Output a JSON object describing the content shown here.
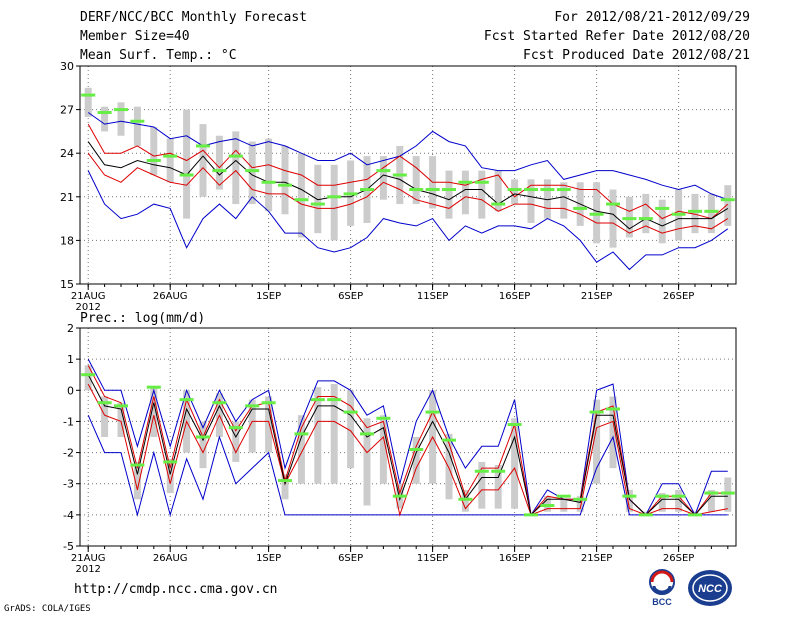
{
  "header": {
    "title": "DERF/NCC/BCC Monthly Forecast",
    "member": "Member Size=40",
    "variable": "Mean Surf. Temp.: °C",
    "period": "For 2012/08/21-2012/09/29",
    "started": "Fcst Started Refer Date 2012/08/20",
    "produced": "Fcst Produced Date 2012/08/21"
  },
  "footer": {
    "url": "http://cmdp.ncc.cma.gov.cn",
    "grads": "GrADS: COLA/IGES",
    "logo1": "BCC",
    "logo2": "NCC"
  },
  "colors": {
    "max": "#0000cc",
    "min": "#0000cc",
    "upper": "#dd0000",
    "lower": "#dd0000",
    "mean": "#000000",
    "bar": "#cccccc",
    "mark": "#66ee44",
    "grid": "#777777"
  },
  "chart_data": [
    {
      "type": "line",
      "title": "",
      "ylabel": "Mean Surf. Temp.: °C",
      "ylim": [
        15,
        30
      ],
      "yticks": [
        15,
        18,
        21,
        24,
        27,
        30
      ],
      "xticks": [
        {
          "day": 1,
          "label": "21AUG",
          "sub": "2012"
        },
        {
          "day": 6,
          "label": "26AUG"
        },
        {
          "day": 12,
          "label": "1SEP"
        },
        {
          "day": 17,
          "label": "6SEP"
        },
        {
          "day": 22,
          "label": "11SEP"
        },
        {
          "day": 27,
          "label": "16SEP"
        },
        {
          "day": 32,
          "label": "21SEP"
        },
        {
          "day": 37,
          "label": "26SEP"
        }
      ],
      "days": 40,
      "series": [
        {
          "name": "max",
          "values": [
            26.8,
            26.0,
            26.2,
            26.0,
            25.8,
            25.0,
            25.2,
            24.5,
            24.8,
            25.0,
            24.5,
            24.8,
            24.5,
            24.0,
            23.5,
            23.5,
            24.0,
            23.2,
            23.5,
            23.8,
            24.5,
            25.5,
            24.8,
            24.5,
            23.0,
            22.8,
            22.8,
            23.2,
            23.5,
            22.2,
            22.5,
            22.8,
            22.8,
            22.5,
            22.2,
            21.8,
            21.5,
            21.8,
            21.2,
            20.8
          ]
        },
        {
          "name": "upper",
          "values": [
            26.0,
            24.0,
            24.0,
            24.5,
            23.8,
            24.0,
            23.5,
            24.2,
            23.0,
            24.2,
            23.0,
            23.2,
            22.8,
            22.5,
            21.8,
            21.8,
            22.0,
            22.2,
            23.0,
            23.8,
            23.0,
            22.0,
            22.0,
            21.8,
            22.2,
            22.5,
            21.0,
            21.8,
            21.8,
            21.8,
            21.5,
            21.5,
            20.5,
            20.0,
            20.5,
            19.5,
            20.0,
            19.8,
            19.5,
            20.5
          ]
        },
        {
          "name": "mean",
          "values": [
            24.8,
            23.2,
            23.0,
            23.5,
            23.2,
            23.0,
            22.5,
            23.8,
            22.5,
            23.5,
            22.5,
            22.0,
            22.0,
            21.5,
            20.8,
            21.0,
            21.0,
            21.5,
            22.5,
            22.2,
            21.5,
            21.2,
            20.8,
            21.5,
            21.5,
            20.5,
            21.2,
            21.0,
            20.8,
            21.0,
            20.5,
            20.0,
            19.8,
            18.8,
            19.5,
            19.0,
            19.5,
            19.5,
            19.5,
            20.2
          ]
        },
        {
          "name": "lower",
          "values": [
            24.0,
            22.5,
            22.0,
            23.0,
            22.5,
            22.0,
            21.8,
            23.0,
            21.8,
            22.8,
            21.5,
            21.2,
            21.2,
            20.5,
            20.2,
            20.2,
            20.5,
            21.0,
            22.0,
            21.5,
            20.8,
            20.5,
            20.2,
            21.0,
            20.8,
            20.0,
            20.5,
            20.5,
            20.2,
            20.2,
            19.8,
            19.2,
            19.2,
            18.5,
            19.0,
            18.5,
            18.8,
            19.0,
            18.8,
            19.5
          ]
        },
        {
          "name": "min",
          "values": [
            22.8,
            20.5,
            19.5,
            19.8,
            20.5,
            20.2,
            17.5,
            19.5,
            20.5,
            19.5,
            21.0,
            20.0,
            18.5,
            18.5,
            17.5,
            17.2,
            17.5,
            18.2,
            19.5,
            19.2,
            19.0,
            19.5,
            18.0,
            19.0,
            18.5,
            19.0,
            19.0,
            18.8,
            19.5,
            19.0,
            18.0,
            16.5,
            17.2,
            16.0,
            17.0,
            17.0,
            17.5,
            17.5,
            18.0,
            18.8
          ]
        },
        {
          "name": "bar_top",
          "values": [
            28.5,
            27.2,
            27.5,
            27.2,
            25.8,
            25.0,
            27.0,
            26.0,
            25.2,
            25.5,
            24.8,
            25.0,
            24.5,
            24.0,
            23.2,
            23.2,
            23.5,
            23.8,
            23.8,
            24.5,
            23.8,
            23.8,
            22.8,
            22.8,
            22.8,
            22.8,
            22.2,
            22.2,
            22.2,
            22.0,
            22.0,
            22.0,
            21.5,
            21.0,
            21.2,
            20.8,
            21.5,
            21.2,
            21.2,
            21.8
          ]
        },
        {
          "name": "bar_bottom",
          "values": [
            26.5,
            25.5,
            25.2,
            24.5,
            22.5,
            22.0,
            19.5,
            21.0,
            21.5,
            20.5,
            20.5,
            20.0,
            19.8,
            18.2,
            18.5,
            18.0,
            19.0,
            19.2,
            20.8,
            20.5,
            20.5,
            20.2,
            19.5,
            19.8,
            19.5,
            20.0,
            20.5,
            19.2,
            19.5,
            19.5,
            19.0,
            17.8,
            17.5,
            18.2,
            18.5,
            17.8,
            18.0,
            18.5,
            18.5,
            19.0
          ]
        },
        {
          "name": "marker",
          "values": [
            28.0,
            26.8,
            27.0,
            26.2,
            23.5,
            23.8,
            22.5,
            24.5,
            22.8,
            23.8,
            22.8,
            22.0,
            21.8,
            20.8,
            20.5,
            21.0,
            21.2,
            21.5,
            22.8,
            22.5,
            21.5,
            21.5,
            21.5,
            22.0,
            22.0,
            20.5,
            21.5,
            21.5,
            21.5,
            21.5,
            20.2,
            19.8,
            20.5,
            19.5,
            19.5,
            20.2,
            19.8,
            20.0,
            20.0,
            20.8
          ]
        }
      ]
    },
    {
      "type": "line",
      "title": "",
      "ylabel": "Prec.: log(mm/d)",
      "ylim": [
        -5,
        2
      ],
      "yticks": [
        -5,
        -4,
        -3,
        -2,
        -1,
        0,
        1,
        2
      ],
      "xticks": [
        {
          "day": 1,
          "label": "21AUG",
          "sub": "2012"
        },
        {
          "day": 6,
          "label": "26AUG"
        },
        {
          "day": 12,
          "label": "1SEP"
        },
        {
          "day": 17,
          "label": "6SEP"
        },
        {
          "day": 22,
          "label": "11SEP"
        },
        {
          "day": 27,
          "label": "16SEP"
        },
        {
          "day": 32,
          "label": "21SEP"
        },
        {
          "day": 37,
          "label": "26SEP"
        }
      ],
      "days": 40,
      "series": [
        {
          "name": "max",
          "values": [
            1.0,
            0.0,
            0.0,
            -1.8,
            0.0,
            -1.8,
            0.0,
            -1.2,
            0.0,
            -1.0,
            -0.3,
            0.0,
            -2.5,
            -1.0,
            0.3,
            0.3,
            0.0,
            -0.8,
            -0.5,
            -3.0,
            -1.0,
            0.0,
            -1.5,
            -2.5,
            -1.8,
            -1.8,
            -0.3,
            -4.0,
            -3.2,
            -3.5,
            -3.5,
            0.0,
            0.2,
            -3.5,
            -4.0,
            -3.0,
            -3.0,
            -4.0,
            -2.6,
            -2.6
          ]
        },
        {
          "name": "upper",
          "values": [
            0.8,
            -0.2,
            -0.4,
            -2.5,
            -0.2,
            -2.5,
            -0.3,
            -1.5,
            -0.3,
            -1.3,
            -0.5,
            -0.4,
            -2.9,
            -1.2,
            -0.2,
            -0.2,
            -0.5,
            -1.2,
            -1.0,
            -3.3,
            -1.8,
            -0.7,
            -1.7,
            -3.4,
            -2.5,
            -2.5,
            -1.1,
            -4.0,
            -3.4,
            -3.5,
            -3.5,
            -0.7,
            -0.5,
            -3.5,
            -4.0,
            -3.4,
            -3.4,
            -4.0,
            -3.3,
            -3.3
          ]
        },
        {
          "name": "mean",
          "values": [
            0.5,
            -0.5,
            -0.6,
            -2.7,
            -0.4,
            -2.7,
            -0.6,
            -1.6,
            -0.5,
            -1.5,
            -0.6,
            -0.6,
            -3.0,
            -1.5,
            -0.5,
            -0.5,
            -0.8,
            -1.5,
            -1.2,
            -3.5,
            -2.0,
            -1.0,
            -2.0,
            -3.5,
            -2.8,
            -2.8,
            -1.5,
            -4.0,
            -3.5,
            -3.5,
            -3.6,
            -0.8,
            -0.8,
            -3.5,
            -4.0,
            -3.5,
            -3.5,
            -4.0,
            -3.4,
            -3.4
          ]
        },
        {
          "name": "lower",
          "values": [
            0.2,
            -0.8,
            -1.0,
            -3.2,
            -0.8,
            -3.0,
            -1.0,
            -2.0,
            -0.8,
            -2.0,
            -1.0,
            -1.0,
            -3.0,
            -2.0,
            -1.0,
            -1.0,
            -1.3,
            -2.0,
            -1.5,
            -4.0,
            -2.5,
            -1.5,
            -2.5,
            -3.8,
            -3.2,
            -3.2,
            -2.5,
            -4.0,
            -3.8,
            -3.8,
            -3.8,
            -1.2,
            -1.0,
            -3.8,
            -4.0,
            -3.8,
            -3.8,
            -4.0,
            -3.9,
            -3.8
          ]
        },
        {
          "name": "min",
          "values": [
            -0.8,
            -2.0,
            -2.0,
            -4.0,
            -2.0,
            -4.0,
            -2.2,
            -3.5,
            -1.5,
            -3.0,
            -2.5,
            -2.0,
            -4.0,
            -4.0,
            -4.0,
            -4.0,
            -4.0,
            -4.0,
            -4.0,
            -4.0,
            -4.0,
            -4.0,
            -4.0,
            -4.0,
            -4.0,
            -4.0,
            -4.0,
            -4.0,
            -4.0,
            -4.0,
            -4.0,
            -2.5,
            -1.5,
            -4.0,
            -4.0,
            -4.0,
            -4.0,
            -4.0,
            -4.0,
            -4.0
          ]
        },
        {
          "name": "bar_top",
          "values": [
            0.8,
            -0.2,
            -0.4,
            -2.3,
            0.1,
            -2.2,
            0.0,
            -1.0,
            -0.1,
            -1.0,
            -0.3,
            -0.2,
            -2.7,
            -0.8,
            0.1,
            0.2,
            0.0,
            -0.9,
            -0.8,
            -3.0,
            -1.5,
            0.0,
            -1.4,
            -3.2,
            -2.3,
            -2.4,
            -0.9,
            -4.0,
            -3.4,
            -3.5,
            -3.4,
            -0.3,
            -0.2,
            -3.2,
            -3.9,
            -3.3,
            -3.2,
            -3.9,
            -3.2,
            -2.8
          ]
        },
        {
          "name": "bar_bottom",
          "values": [
            0.0,
            -1.5,
            -1.5,
            -3.5,
            -1.5,
            -3.3,
            -2.0,
            -2.5,
            -1.5,
            -2.3,
            -2.0,
            -2.0,
            -3.5,
            -3.0,
            -3.0,
            -3.0,
            -2.5,
            -3.7,
            -3.0,
            -3.8,
            -3.0,
            -3.0,
            -3.5,
            -3.9,
            -3.8,
            -3.8,
            -3.8,
            -4.0,
            -3.9,
            -3.9,
            -3.9,
            -3.0,
            -2.5,
            -3.9,
            -4.0,
            -3.9,
            -3.9,
            -4.0,
            -3.9,
            -3.9
          ]
        },
        {
          "name": "marker",
          "values": [
            0.5,
            -0.4,
            -0.5,
            -2.4,
            0.1,
            -2.3,
            -0.3,
            -1.5,
            -0.4,
            -1.2,
            -0.5,
            -0.4,
            -2.9,
            -1.4,
            -0.3,
            -0.3,
            -0.7,
            -1.4,
            -0.9,
            -3.4,
            -1.9,
            -0.7,
            -1.6,
            -3.5,
            -2.6,
            -2.6,
            -1.1,
            -4.0,
            -3.7,
            -3.4,
            -3.5,
            -0.7,
            -0.6,
            -3.4,
            -4.0,
            -3.4,
            -3.4,
            -4.0,
            -3.3,
            -3.3
          ]
        }
      ]
    }
  ]
}
